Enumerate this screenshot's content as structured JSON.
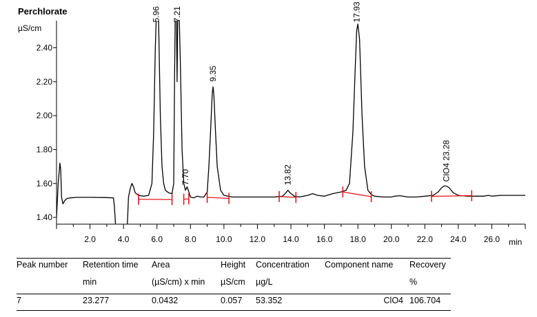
{
  "title": "Perchlorate",
  "chart_data": {
    "type": "line",
    "ylabel": "µS/cm",
    "xlabel": "min",
    "xlim": [
      0,
      28
    ],
    "ylim": [
      1.36,
      2.56
    ],
    "xticks": [
      2,
      4,
      6,
      8,
      10,
      12,
      14,
      16,
      18,
      20,
      22,
      24,
      26
    ],
    "xtick_labels": [
      "2.0",
      "4.0",
      "6.0",
      "8.0",
      "10.0",
      "12.0",
      "14.0",
      "16.0",
      "18.0",
      "20.0",
      "22.0",
      "24.0",
      "26.0"
    ],
    "yticks": [
      1.4,
      1.6,
      1.8,
      2.0,
      2.2,
      2.4
    ],
    "ytick_labels": [
      "1.40",
      "1.60",
      "1.80",
      "2.00",
      "2.20",
      "2.40"
    ],
    "grid": false,
    "series": [
      {
        "color": "#000000",
        "x": [
          0.0,
          0.1,
          0.2,
          0.25,
          0.3,
          0.38,
          0.5,
          0.6,
          0.8,
          1.2,
          2.0,
          3.0,
          3.4,
          3.45,
          3.5,
          3.55,
          3.6,
          3.7,
          4.0,
          4.2,
          4.25,
          4.3,
          4.4,
          4.5,
          4.6,
          4.7,
          4.9,
          5.2,
          5.5,
          5.7,
          5.8,
          5.9,
          6.0,
          6.1,
          6.2,
          6.3,
          6.4,
          6.5,
          6.7,
          6.9,
          7.0,
          7.05,
          7.1,
          7.15,
          7.2,
          7.25,
          7.3,
          7.4,
          7.5,
          7.6,
          7.7,
          7.8,
          7.9,
          8.0,
          8.2,
          8.4,
          8.6,
          8.8,
          9.0,
          9.1,
          9.2,
          9.3,
          9.35,
          9.4,
          9.5,
          9.6,
          9.8,
          10.0,
          10.5,
          11.0,
          12.0,
          13.0,
          13.5,
          13.7,
          13.82,
          13.95,
          14.2,
          14.5,
          15.0,
          15.3,
          15.6,
          16.0,
          16.5,
          17.0,
          17.3,
          17.5,
          17.7,
          17.85,
          17.93,
          18.0,
          18.1,
          18.25,
          18.4,
          18.6,
          18.8,
          19.0,
          19.5,
          20.0,
          20.2,
          20.5,
          21.0,
          21.5,
          22.0,
          22.5,
          22.8,
          23.0,
          23.15,
          23.28,
          23.45,
          23.7,
          24.0,
          24.5,
          25.0,
          25.5,
          25.8,
          26.0,
          26.5,
          27.0,
          27.5,
          28.0
        ],
        "y": [
          1.4,
          1.6,
          1.72,
          1.68,
          1.52,
          1.48,
          1.5,
          1.51,
          1.515,
          1.518,
          1.518,
          1.517,
          1.515,
          1.47,
          1.4,
          1.3,
          1.3,
          1.3,
          1.3,
          1.3,
          1.4,
          1.52,
          1.57,
          1.6,
          1.58,
          1.545,
          1.53,
          1.525,
          1.53,
          1.6,
          1.9,
          2.4,
          2.7,
          2.55,
          2.0,
          1.7,
          1.6,
          1.56,
          1.545,
          1.54,
          1.6,
          2.2,
          2.7,
          2.7,
          2.2,
          2.7,
          2.7,
          2.3,
          1.8,
          1.6,
          1.56,
          1.58,
          1.55,
          1.52,
          1.515,
          1.525,
          1.52,
          1.52,
          1.55,
          1.7,
          1.9,
          2.13,
          2.17,
          2.12,
          1.9,
          1.7,
          1.56,
          1.53,
          1.52,
          1.52,
          1.52,
          1.52,
          1.525,
          1.545,
          1.56,
          1.545,
          1.525,
          1.52,
          1.53,
          1.54,
          1.53,
          1.525,
          1.54,
          1.55,
          1.56,
          1.6,
          1.9,
          2.3,
          2.5,
          2.54,
          2.45,
          2.0,
          1.7,
          1.56,
          1.535,
          1.525,
          1.52,
          1.52,
          1.525,
          1.528,
          1.52,
          1.52,
          1.525,
          1.53,
          1.55,
          1.575,
          1.585,
          1.585,
          1.575,
          1.545,
          1.53,
          1.525,
          1.525,
          1.525,
          1.53,
          1.525,
          1.53,
          1.53,
          1.53,
          1.53
        ]
      }
    ],
    "peak_labels": [
      {
        "label": "5.96",
        "x": 5.96,
        "y": 2.55
      },
      {
        "label": "7.21",
        "x": 7.21,
        "y": 2.55
      },
      {
        "label": "7.70",
        "x": 7.7,
        "y": 1.59
      },
      {
        "label": "9.35",
        "x": 9.35,
        "y": 2.2
      },
      {
        "label": "13.82",
        "x": 13.82,
        "y": 1.59
      },
      {
        "label": "17.93",
        "x": 17.93,
        "y": 2.55
      },
      {
        "label": "ClO4 23.28",
        "x": 23.28,
        "y": 1.61
      }
    ],
    "baseline_segments": [
      [
        [
          4.9,
          1.507
        ],
        [
          6.9,
          1.505
        ]
      ],
      [
        [
          7.6,
          1.507
        ],
        [
          7.9,
          1.509
        ]
      ],
      [
        [
          9.0,
          1.518
        ],
        [
          10.3,
          1.512
        ]
      ],
      [
        [
          13.3,
          1.523
        ],
        [
          14.3,
          1.518
        ]
      ],
      [
        [
          17.1,
          1.55
        ],
        [
          18.8,
          1.522
        ]
      ],
      [
        [
          22.4,
          1.524
        ],
        [
          24.8,
          1.528
        ]
      ]
    ],
    "integration_marks": [
      4.9,
      6.9,
      7.6,
      7.9,
      9.0,
      10.3,
      13.3,
      14.3,
      17.1,
      18.8,
      22.4,
      24.8
    ],
    "colors": {
      "trace": "#000000",
      "baseline": "#e8151b"
    }
  },
  "table": {
    "headers": [
      "Peak number",
      "Retention time",
      "Area",
      "Height",
      "Concentration",
      "Component name",
      "Recovery"
    ],
    "units": [
      "",
      "min",
      "(µS/cm) x min",
      "µS/cm",
      "µg/L",
      "",
      "%"
    ],
    "rows": [
      [
        "7",
        "23.277",
        "0.0432",
        "0.057",
        "53.352",
        "ClO4",
        "106.704"
      ]
    ]
  }
}
